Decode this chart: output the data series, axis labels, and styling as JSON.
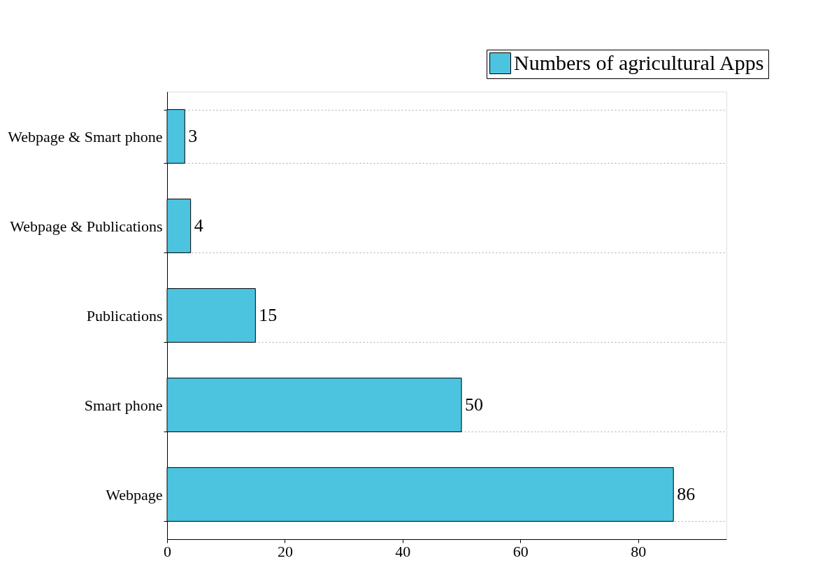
{
  "chart_data": {
    "type": "bar",
    "orientation": "horizontal",
    "categories": [
      "Webpage & Smart phone",
      "Webpage & Publications",
      "Publications",
      "Smart phone",
      "Webpage"
    ],
    "series": [
      {
        "name": "Numbers of agricultural Apps",
        "color": "#4cc4e0",
        "values": [
          3,
          4,
          15,
          50,
          86
        ]
      }
    ],
    "xlim": [
      0,
      95
    ],
    "xticks": [
      0,
      20,
      40,
      60,
      80
    ],
    "grid": "y",
    "legend": "top right",
    "data_labels": true
  }
}
